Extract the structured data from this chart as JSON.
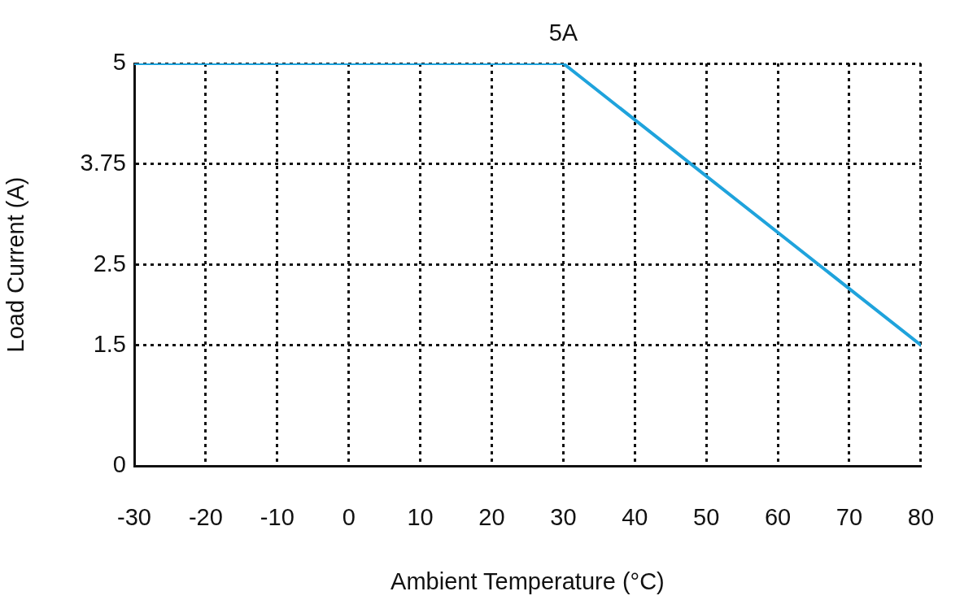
{
  "chart_data": {
    "type": "line",
    "xlabel": "Ambient Temperature (°C)",
    "ylabel": "Load Current (A)",
    "series": [
      {
        "color": "#1fa3dc",
        "x": [
          -30,
          30,
          80
        ],
        "values": [
          5,
          5,
          1.5
        ]
      }
    ],
    "xlim": [
      -30,
      80
    ],
    "xticks": [
      -30,
      -20,
      -10,
      0,
      10,
      20,
      30,
      40,
      50,
      60,
      70,
      80
    ],
    "ylim": [
      0,
      5
    ],
    "yticks": [
      0,
      1.5,
      2.5,
      3.75,
      5
    ],
    "grid": true,
    "legend": false,
    "marker": "none",
    "line_style": "solid",
    "annotations": [
      {
        "text": "5A",
        "x": 30,
        "y": 5
      }
    ]
  }
}
